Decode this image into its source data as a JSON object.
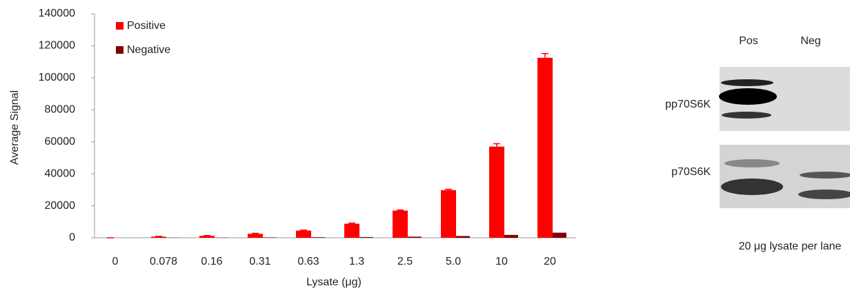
{
  "chart_data": {
    "type": "bar",
    "categories": [
      "0",
      "0.078",
      "0.16",
      "0.31",
      "0.63",
      "1.3",
      "2.5",
      "5.0",
      "10",
      "20"
    ],
    "series": [
      {
        "name": "Positive",
        "color": "#ff0000",
        "values": [
          0,
          700,
          1200,
          2500,
          4500,
          8800,
          17000,
          29800,
          57000,
          112500
        ],
        "errors": [
          0,
          200,
          200,
          300,
          300,
          400,
          400,
          500,
          1800,
          2600
        ]
      },
      {
        "name": "Negative",
        "color": "#800000",
        "values": [
          0,
          100,
          150,
          250,
          350,
          450,
          700,
          1100,
          1800,
          3200
        ]
      }
    ],
    "x_label": "Lysate (μg)",
    "y_label": "Average Signal",
    "ylim": [
      0,
      140000
    ],
    "yticks": [
      0,
      20000,
      40000,
      60000,
      80000,
      100000,
      120000,
      140000
    ],
    "grid": false,
    "legend": "upper-left"
  },
  "blot": {
    "lanes": [
      "Pos",
      "Neg"
    ],
    "rows": [
      "pp70S6K",
      "p70S6K"
    ],
    "caption": "20 μg lysate per lane"
  }
}
